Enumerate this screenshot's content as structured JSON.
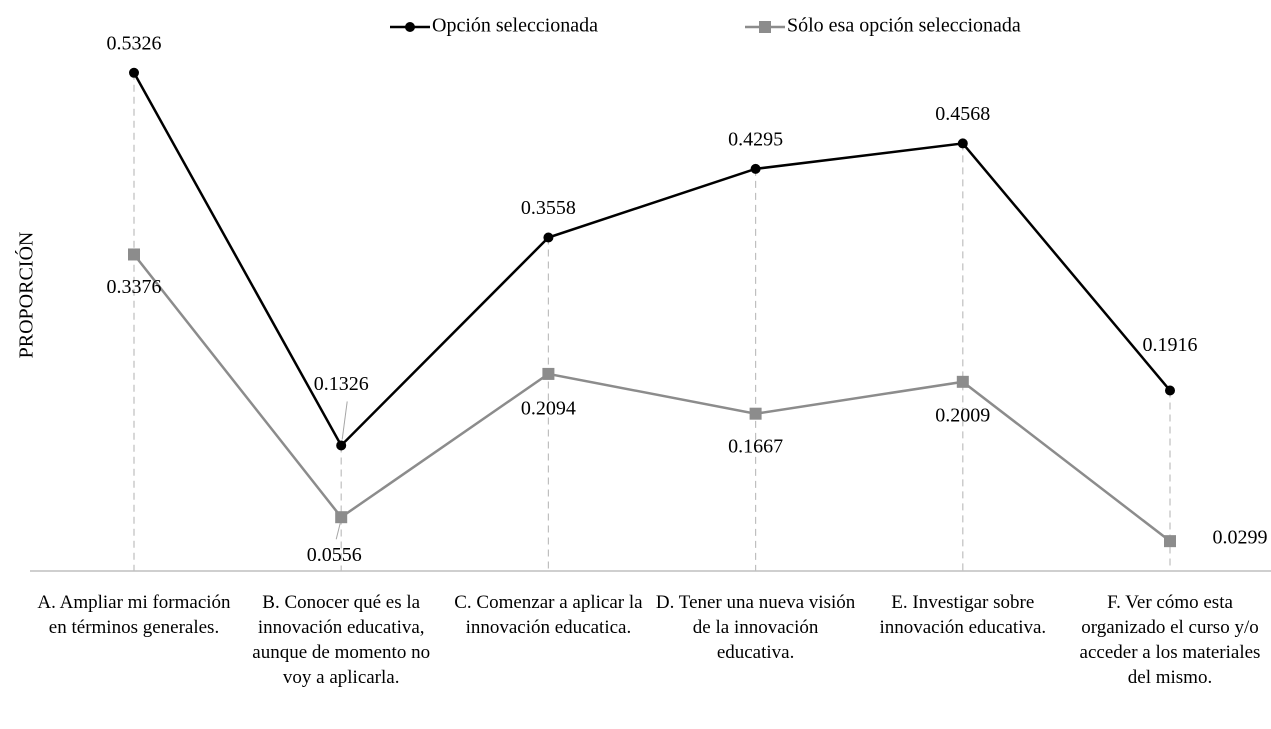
{
  "chart_data": {
    "type": "line",
    "y_label": "PROPORCIÓN",
    "categories": [
      "A. Ampliar mi formación en términos generales.",
      "B. Conocer qué es la innovación educativa, aunque de momento no voy a aplicarla.",
      "C. Comenzar a aplicar la innovación educatica.",
      "D. Tener una nueva visión de la innovación educativa.",
      "E. Investigar sobre innovación educativa.",
      "F. Ver cómo esta organizado el curso y/o acceder a los materiales del mismo."
    ],
    "series": [
      {
        "name": "Opción seleccionada",
        "color": "#000000",
        "marker": "circle",
        "values": [
          0.5326,
          0.1326,
          0.3558,
          0.4295,
          0.4568,
          0.1916
        ]
      },
      {
        "name": "Sólo esa opción seleccionada",
        "color": "#8c8c8c",
        "marker": "square",
        "values": [
          0.3376,
          0.0556,
          0.2094,
          0.1667,
          0.2009,
          0.0299
        ]
      }
    ],
    "ylim": [
      0,
      0.6
    ],
    "drop_lines": true,
    "legend": "top"
  }
}
